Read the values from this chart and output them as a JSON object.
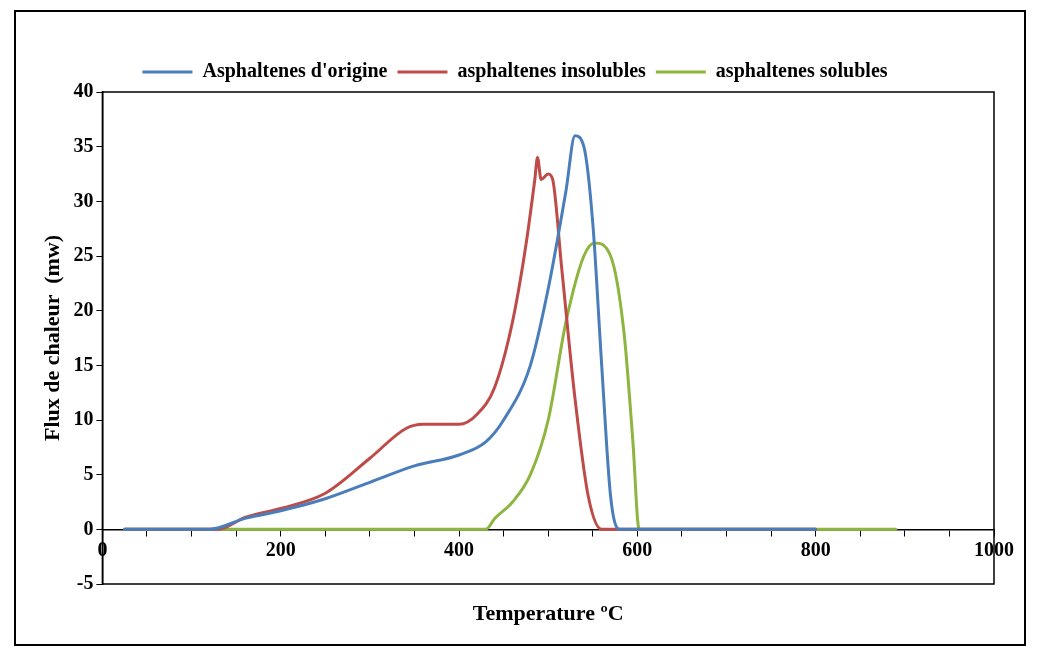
{
  "chart_data": {
    "type": "line",
    "xlabel": "Temperature ºC",
    "ylabel": "Flux de chaleur  (mw)",
    "legend": "top",
    "grid": false,
    "marker": "none",
    "line_style": "solid",
    "xlim": [
      0,
      1000
    ],
    "ylim": [
      -5,
      40
    ],
    "xticks": [
      0,
      {
        "value": 50,
        "label": null
      },
      200,
      {
        "value": 100,
        "label": null
      },
      {
        "value": 150,
        "label": null
      },
      {
        "value": 250,
        "label": null
      },
      {
        "value": 300,
        "label": null
      },
      {
        "value": 350,
        "label": null
      },
      400,
      {
        "value": 450,
        "label": null
      },
      {
        "value": 500,
        "label": null
      },
      {
        "value": 550,
        "label": null
      },
      600,
      {
        "value": 650,
        "label": null
      },
      {
        "value": 700,
        "label": null
      },
      {
        "value": 750,
        "label": null
      },
      800,
      {
        "value": 850,
        "label": null
      },
      {
        "value": 900,
        "label": null
      },
      {
        "value": 950,
        "label": null
      },
      1000
    ],
    "yticks": [
      -5,
      0,
      5,
      10,
      15,
      20,
      25,
      30,
      35,
      40
    ],
    "series": [
      {
        "name": "Asphaltenes d'origine",
        "color": "#4a7ebb",
        "x": [
          25,
          120,
          160,
          200,
          250,
          300,
          350,
          400,
          430,
          450,
          480,
          500,
          520,
          530,
          540,
          550,
          560,
          570,
          580,
          800
        ],
        "values": [
          0,
          0,
          1.0,
          1.7,
          2.8,
          4.3,
          5.8,
          6.8,
          8,
          10,
          15,
          22,
          31,
          36,
          35,
          28,
          15,
          3,
          0,
          0
        ]
      },
      {
        "name": "asphaltenes insolubles",
        "color": "#be4b48",
        "x": [
          25,
          130,
          160,
          200,
          250,
          300,
          340,
          360,
          400,
          420,
          440,
          460,
          475,
          485,
          488,
          492,
          500,
          505,
          515,
          530,
          545,
          560,
          800
        ],
        "values": [
          0,
          0,
          1.1,
          1.9,
          3.3,
          6.5,
          9.2,
          9.6,
          9.6,
          10.5,
          13,
          19,
          26,
          32,
          34,
          32,
          32.5,
          32,
          24,
          12,
          3,
          0,
          0
        ]
      },
      {
        "name": "asphaltenes solubles",
        "color": "#8db540",
        "x": [
          25,
          430,
          440,
          460,
          480,
          500,
          520,
          540,
          552,
          570,
          585,
          595,
          602,
          890
        ],
        "values": [
          0,
          0,
          1,
          2.5,
          5,
          10,
          19,
          25,
          26.2,
          25,
          18,
          8,
          0,
          0
        ]
      }
    ]
  }
}
